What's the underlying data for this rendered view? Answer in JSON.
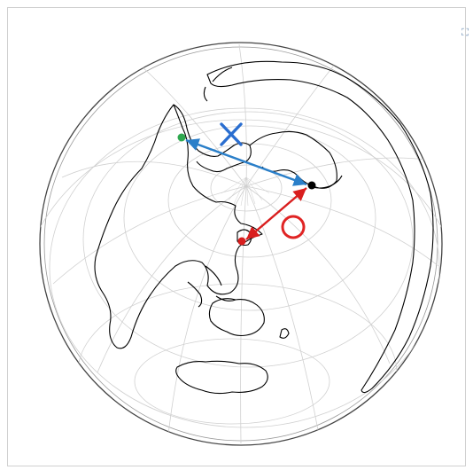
{
  "map": {
    "projection": "azimuthal-equidistant",
    "land_color": "#ffffff",
    "coast_color": "#000000",
    "grid_color": "#d0d0d0"
  },
  "points": [
    {
      "name": "start-green",
      "color": "#2fa84f"
    },
    {
      "name": "end-black",
      "color": "#000000"
    },
    {
      "name": "start-red",
      "color": "#d91e1e"
    }
  ],
  "routes": [
    {
      "name": "wrong-route",
      "color": "#2a7fc9"
    },
    {
      "name": "correct-route",
      "color": "#d91e1e"
    }
  ],
  "marks": {
    "cross": {
      "color": "#2a6ed0",
      "symbol": "cross",
      "meaning": "incorrect"
    },
    "circle": {
      "color": "#e02424",
      "symbol": "circle",
      "meaning": "correct"
    }
  },
  "icon": {
    "corner": "expand-icon"
  }
}
